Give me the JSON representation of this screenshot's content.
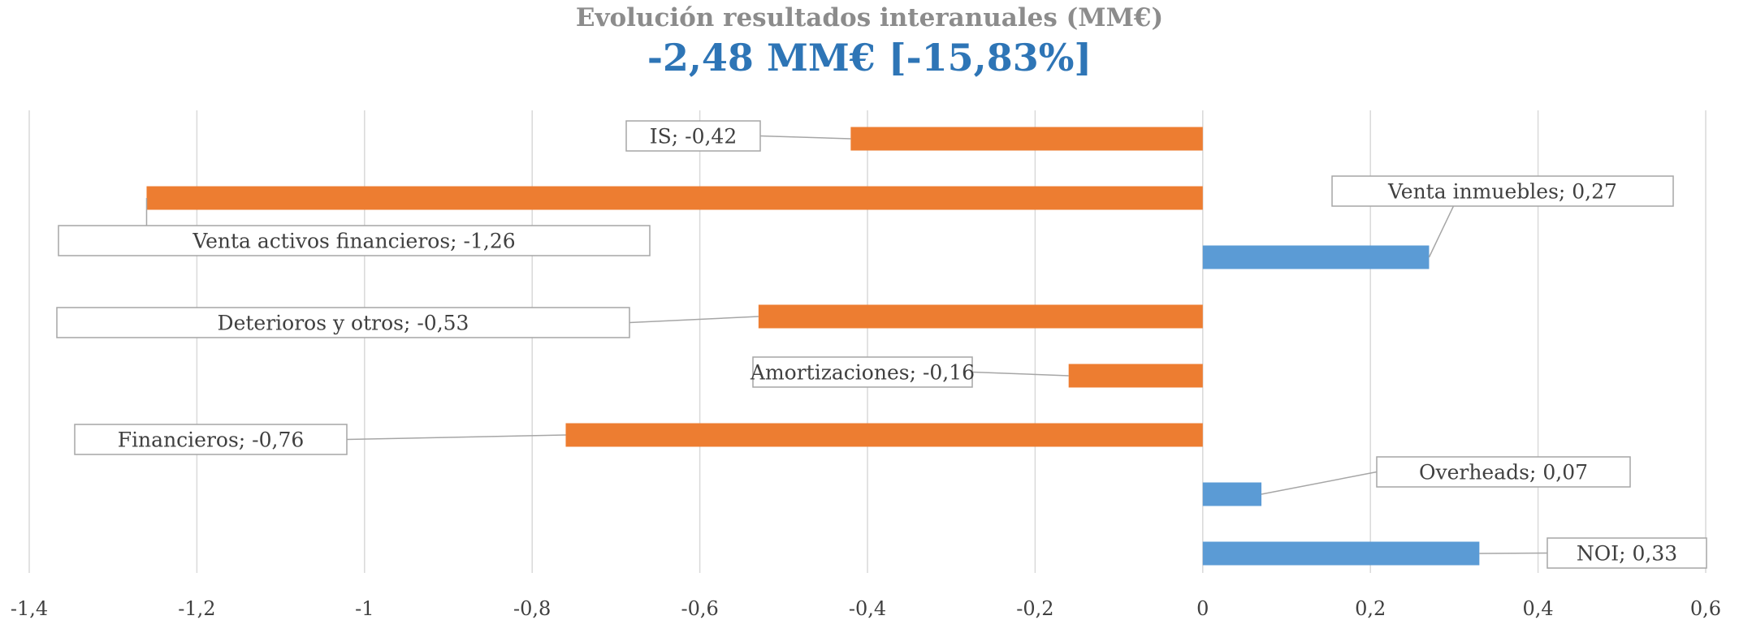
{
  "chart_data": {
    "type": "bar",
    "orientation": "horizontal",
    "title": "Evolución resultados interanuales (MM€)",
    "subtitle": "-2,48 MM€ [-15,83%]",
    "xlabel": "",
    "ylabel": "",
    "xlim": [
      -1.4,
      0.6
    ],
    "x_ticks": [
      "-1,4",
      "-1,2",
      "-1",
      "-0,8",
      "-0,6",
      "-0,4",
      "-0,2",
      "0",
      "0,2",
      "0,4",
      "0,6"
    ],
    "grid": true,
    "legend": "none",
    "colors": {
      "positive": "#5b9bd5",
      "negative": "#ed7d31",
      "grid": "#d9d9d9",
      "title": "#8c8c8c",
      "subtitle": "#2e75b6",
      "label_border": "#a6a6a6"
    },
    "bars": [
      {
        "category": "IS",
        "value": -0.42,
        "label": "IS; -0,42"
      },
      {
        "category": "Venta activos financieros",
        "value": -1.26,
        "label": "Venta activos financieros; -1,26"
      },
      {
        "category": "Venta inmuebles",
        "value": 0.27,
        "label": "Venta inmuebles; 0,27"
      },
      {
        "category": "Deterioros y otros",
        "value": -0.53,
        "label": "Deterioros y otros; -0,53"
      },
      {
        "category": "Amortizaciones",
        "value": -0.16,
        "label": "Amortizaciones; -0,16"
      },
      {
        "category": "Financieros",
        "value": -0.76,
        "label": "Financieros; -0,76"
      },
      {
        "category": "Overheads",
        "value": 0.07,
        "label": "Overheads; 0,07"
      },
      {
        "category": "NOI",
        "value": 0.33,
        "label": "NOI; 0,33"
      }
    ]
  }
}
